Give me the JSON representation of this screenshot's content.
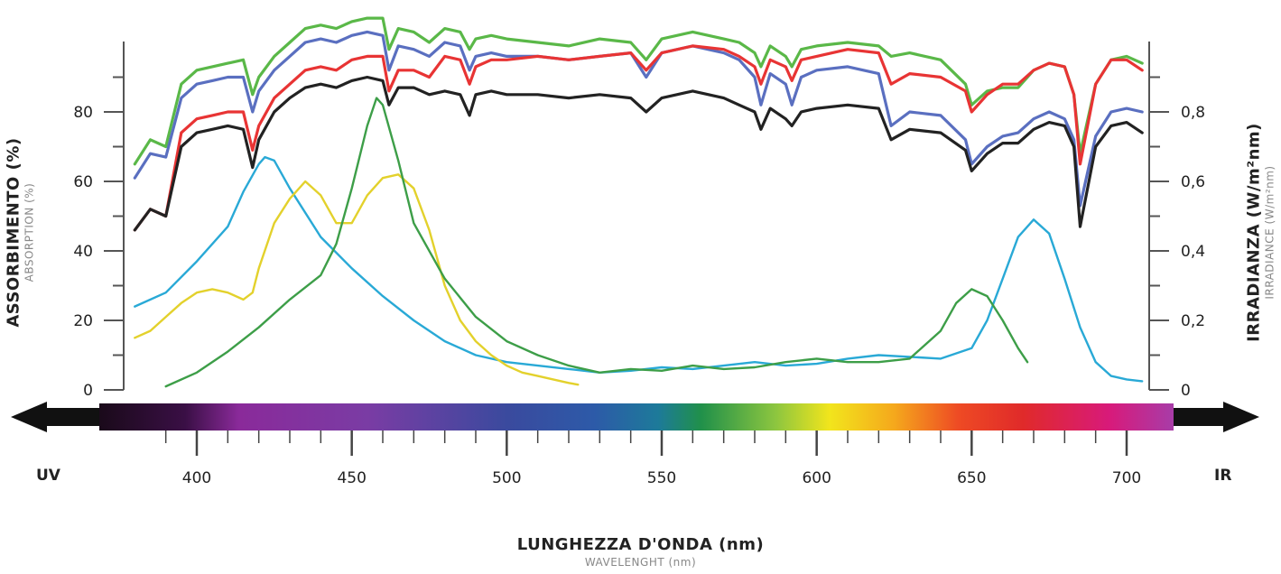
{
  "chart_data": {
    "type": "line",
    "title": "",
    "xlabel": "LUNGHEZZA D'ONDA (nm)",
    "xlabel_sub": "WAVELENGHT (nm)",
    "ylabel_left": "ASSORBIMENTO (%)",
    "ylabel_left_sub": "ABSORPTION (%)",
    "ylabel_right": "IRRADIANZA (W/m²nm)",
    "ylabel_right_sub": "IRRADIANCE (W/m²nm)",
    "x_ticks": [
      "400",
      "450",
      "500",
      "550",
      "600",
      "650",
      "700"
    ],
    "y_left_ticks": [
      "0",
      "20",
      "40",
      "60",
      "80"
    ],
    "y_right_ticks": [
      "0",
      "0,2",
      "0,4",
      "0,6",
      "0,8"
    ],
    "x_end_labels": {
      "left": "UV",
      "right": "IR"
    },
    "xlim": [
      370,
      716
    ],
    "ylim_left": [
      0,
      100
    ],
    "ylim_right": [
      0,
      1.0
    ],
    "grid": false,
    "absorption_series": [
      {
        "color": "#5ab848",
        "x": [
          380,
          385,
          390,
          395,
          400,
          405,
          410,
          415,
          418,
          420,
          425,
          430,
          435,
          440,
          445,
          450,
          455,
          460,
          462,
          465,
          470,
          475,
          480,
          485,
          488,
          490,
          495,
          500,
          510,
          520,
          530,
          540,
          545,
          550,
          560,
          570,
          575,
          580,
          582,
          585,
          590,
          592,
          595,
          600,
          610,
          620,
          624,
          630,
          640,
          648,
          650,
          655,
          660,
          665,
          670,
          675,
          680,
          683,
          685,
          690,
          695,
          700,
          705
        ],
        "y": [
          65,
          72,
          70,
          88,
          92,
          93,
          94,
          95,
          85,
          90,
          96,
          100,
          104,
          105,
          104,
          106,
          107,
          107,
          98,
          104,
          103,
          100,
          104,
          103,
          98,
          101,
          102,
          101,
          100,
          99,
          101,
          100,
          95,
          101,
          103,
          101,
          100,
          97,
          93,
          99,
          96,
          93,
          98,
          99,
          100,
          99,
          96,
          97,
          95,
          88,
          82,
          86,
          87,
          87,
          92,
          94,
          93,
          85,
          68,
          88,
          95,
          96,
          94
        ]
      },
      {
        "color": "#5a6fc0",
        "x": [
          380,
          385,
          390,
          395,
          400,
          405,
          410,
          415,
          418,
          420,
          425,
          430,
          435,
          440,
          445,
          450,
          455,
          460,
          462,
          465,
          470,
          475,
          480,
          485,
          488,
          490,
          495,
          500,
          510,
          520,
          530,
          540,
          545,
          550,
          560,
          570,
          575,
          580,
          582,
          585,
          590,
          592,
          595,
          600,
          610,
          620,
          624,
          630,
          640,
          648,
          650,
          655,
          660,
          665,
          670,
          675,
          680,
          683,
          685,
          690,
          695,
          700,
          705
        ],
        "y": [
          61,
          68,
          67,
          84,
          88,
          89,
          90,
          90,
          80,
          86,
          92,
          96,
          100,
          101,
          100,
          102,
          103,
          102,
          92,
          99,
          98,
          96,
          100,
          99,
          92,
          96,
          97,
          96,
          96,
          95,
          96,
          97,
          90,
          97,
          99,
          97,
          95,
          90,
          82,
          91,
          88,
          82,
          90,
          92,
          93,
          91,
          76,
          80,
          79,
          72,
          65,
          70,
          73,
          74,
          78,
          80,
          78,
          72,
          53,
          73,
          80,
          81,
          80
        ]
      },
      {
        "color": "#e83434",
        "x": [
          380,
          385,
          390,
          395,
          400,
          405,
          410,
          415,
          418,
          420,
          425,
          430,
          435,
          440,
          445,
          450,
          455,
          460,
          462,
          465,
          470,
          475,
          480,
          485,
          488,
          490,
          495,
          500,
          510,
          520,
          530,
          540,
          545,
          550,
          560,
          570,
          575,
          580,
          582,
          585,
          590,
          592,
          595,
          600,
          610,
          620,
          624,
          630,
          640,
          648,
          650,
          655,
          660,
          665,
          670,
          675,
          680,
          683,
          685,
          690,
          695,
          700,
          705
        ],
        "y": [
          46,
          52,
          50,
          74,
          78,
          79,
          80,
          80,
          69,
          76,
          84,
          88,
          92,
          93,
          92,
          95,
          96,
          96,
          86,
          92,
          92,
          90,
          96,
          95,
          88,
          93,
          95,
          95,
          96,
          95,
          96,
          97,
          92,
          97,
          99,
          98,
          96,
          93,
          88,
          95,
          93,
          89,
          95,
          96,
          98,
          97,
          88,
          91,
          90,
          86,
          80,
          85,
          88,
          88,
          92,
          94,
          93,
          85,
          65,
          88,
          95,
          95,
          92
        ]
      },
      {
        "color": "#222222",
        "x": [
          380,
          385,
          390,
          395,
          400,
          405,
          410,
          415,
          418,
          420,
          425,
          430,
          435,
          440,
          445,
          450,
          455,
          460,
          462,
          465,
          470,
          475,
          480,
          485,
          488,
          490,
          495,
          500,
          510,
          520,
          530,
          540,
          545,
          550,
          560,
          570,
          575,
          580,
          582,
          585,
          590,
          592,
          595,
          600,
          610,
          620,
          624,
          630,
          640,
          648,
          650,
          655,
          660,
          665,
          670,
          675,
          680,
          683,
          685,
          690,
          695,
          700,
          705
        ],
        "y": [
          46,
          52,
          50,
          70,
          74,
          75,
          76,
          75,
          64,
          72,
          80,
          84,
          87,
          88,
          87,
          89,
          90,
          89,
          82,
          87,
          87,
          85,
          86,
          85,
          79,
          85,
          86,
          85,
          85,
          84,
          85,
          84,
          80,
          84,
          86,
          84,
          82,
          80,
          75,
          81,
          78,
          76,
          80,
          81,
          82,
          81,
          72,
          75,
          74,
          69,
          63,
          68,
          71,
          71,
          75,
          77,
          76,
          70,
          47,
          70,
          76,
          77,
          74
        ]
      }
    ],
    "irradiance_series": [
      {
        "color": "#29a9d6",
        "x": [
          380,
          390,
          400,
          410,
          415,
          420,
          422,
          425,
          430,
          440,
          450,
          460,
          470,
          480,
          490,
          500,
          510,
          520,
          530,
          540,
          550,
          560,
          570,
          580,
          590,
          600,
          610,
          620,
          630,
          640,
          650,
          655,
          660,
          665,
          670,
          675,
          680,
          685,
          690,
          695,
          700,
          705
        ],
        "y": [
          0.24,
          0.28,
          0.37,
          0.47,
          0.57,
          0.65,
          0.67,
          0.66,
          0.58,
          0.44,
          0.35,
          0.27,
          0.2,
          0.14,
          0.1,
          0.08,
          0.07,
          0.06,
          0.05,
          0.055,
          0.065,
          0.06,
          0.07,
          0.08,
          0.07,
          0.075,
          0.09,
          0.1,
          0.095,
          0.09,
          0.12,
          0.2,
          0.32,
          0.44,
          0.49,
          0.45,
          0.32,
          0.18,
          0.08,
          0.04,
          0.03,
          0.025
        ]
      },
      {
        "color": "#e3d12c",
        "x": [
          380,
          385,
          390,
          395,
          400,
          405,
          410,
          415,
          418,
          420,
          425,
          430,
          435,
          440,
          445,
          450,
          455,
          460,
          465,
          470,
          475,
          480,
          485,
          490,
          495,
          500,
          505,
          510,
          515,
          520,
          523
        ],
        "y": [
          0.15,
          0.17,
          0.21,
          0.25,
          0.28,
          0.29,
          0.28,
          0.26,
          0.28,
          0.35,
          0.48,
          0.55,
          0.6,
          0.56,
          0.48,
          0.48,
          0.56,
          0.61,
          0.62,
          0.58,
          0.46,
          0.3,
          0.2,
          0.14,
          0.1,
          0.07,
          0.05,
          0.04,
          0.03,
          0.02,
          0.015
        ]
      },
      {
        "color": "#3d9e48",
        "x": [
          390,
          400,
          410,
          420,
          430,
          440,
          445,
          450,
          455,
          458,
          460,
          465,
          470,
          480,
          490,
          500,
          510,
          520,
          530,
          540,
          550,
          560,
          570,
          580,
          590,
          600,
          610,
          620,
          630,
          640,
          645,
          650,
          655,
          660,
          665,
          668
        ],
        "y": [
          0.01,
          0.05,
          0.11,
          0.18,
          0.26,
          0.33,
          0.42,
          0.58,
          0.76,
          0.84,
          0.82,
          0.66,
          0.48,
          0.32,
          0.21,
          0.14,
          0.1,
          0.07,
          0.05,
          0.06,
          0.055,
          0.07,
          0.06,
          0.065,
          0.08,
          0.09,
          0.08,
          0.08,
          0.09,
          0.17,
          0.25,
          0.29,
          0.27,
          0.2,
          0.12,
          0.08
        ]
      }
    ]
  }
}
